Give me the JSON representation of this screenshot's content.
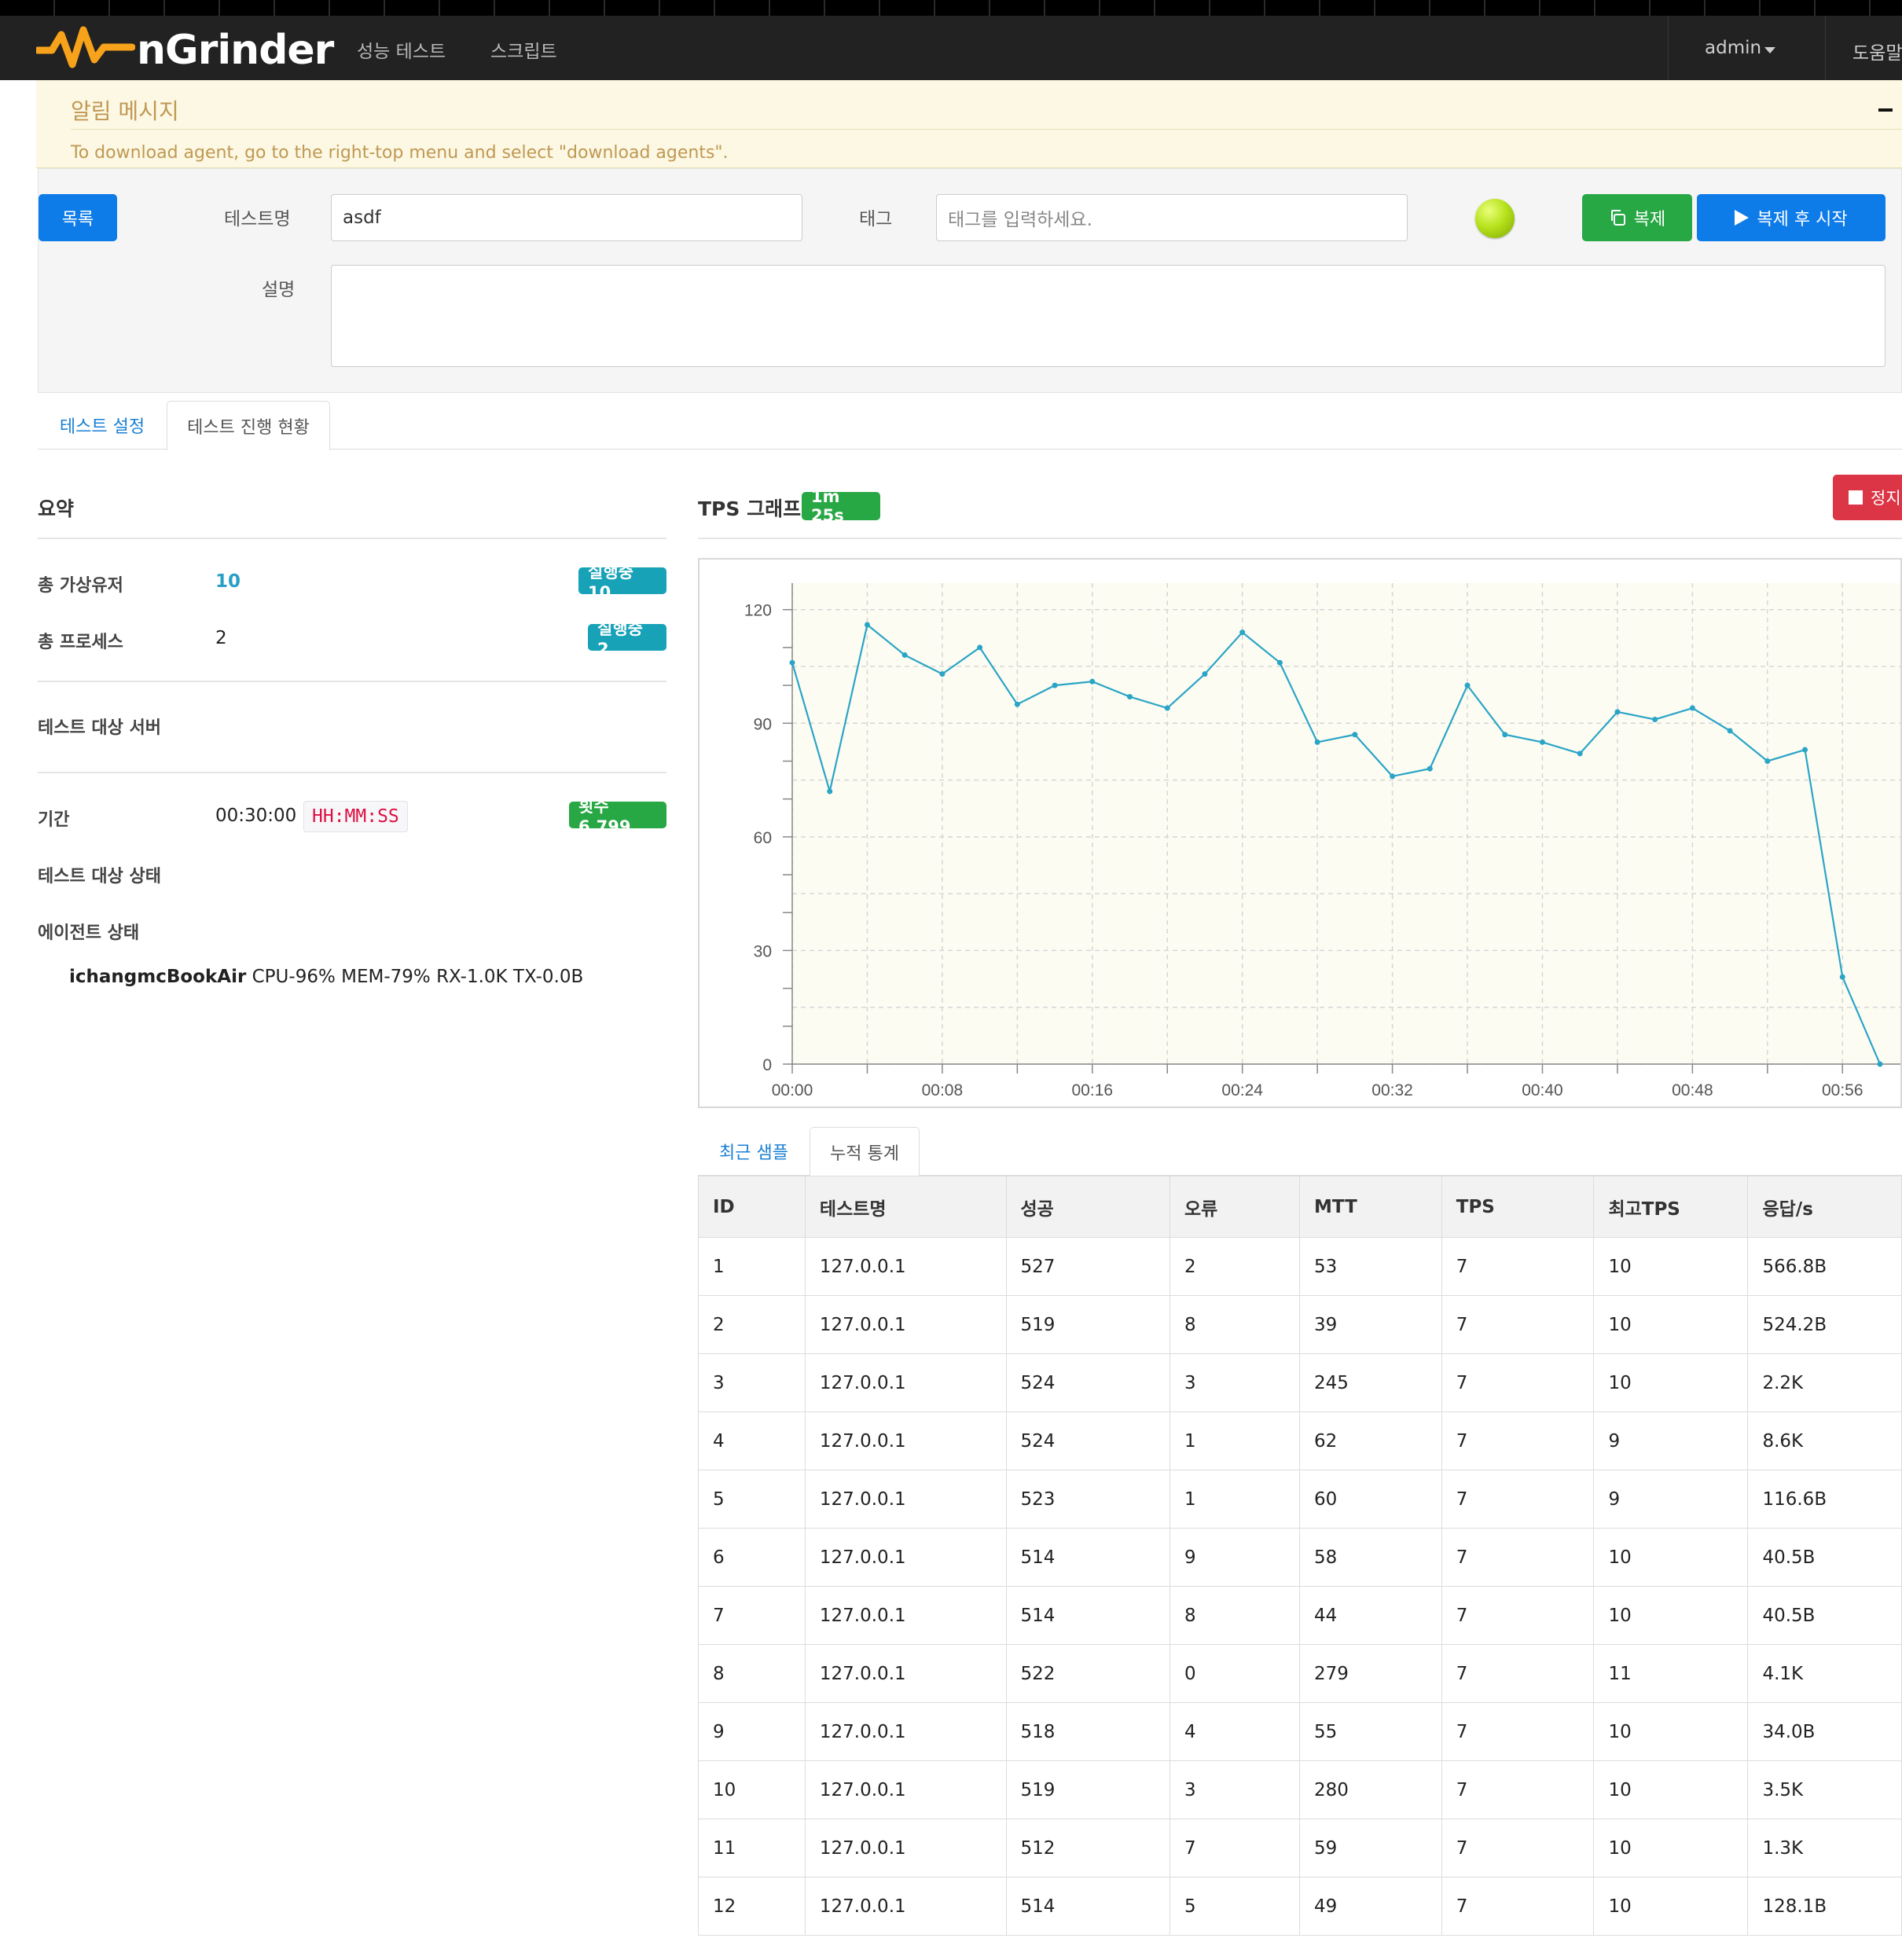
{
  "navbar": {
    "brand": "nGrinder",
    "links": [
      "성능 테스트",
      "스크립트"
    ],
    "user": "admin",
    "help": "도움말"
  },
  "alert": {
    "title": "알림 메시지",
    "body": "To download agent, go to the right-top menu and select \"download agents\"."
  },
  "form": {
    "list_button": "목록",
    "test_name_label": "테스트명",
    "test_name_value": "asdf",
    "tag_label": "태그",
    "tag_placeholder": "태그를 입력하세요.",
    "description_label": "설명",
    "copy_button": "복제",
    "copy_start_button": "복제 후 시작"
  },
  "tabs": [
    "테스트 설정",
    "테스트 진행 현황"
  ],
  "summary": {
    "title": "요약",
    "total_vusers_label": "총 가상유저",
    "total_vusers_value": "10",
    "total_vusers_badge": "실행중 10",
    "total_process_label": "총 프로세스",
    "total_process_value": "2",
    "total_process_badge": "실행중 2",
    "target_server_label": "테스트 대상 서버",
    "duration_label": "기간",
    "duration_value": "00:30:00",
    "duration_format": "HH:MM:SS",
    "runs_badge": "횟수 6,799",
    "target_status_label": "테스트 대상 상태",
    "agent_status_label": "에이전트 상태",
    "agent_name": "ichangmcBookAir",
    "agent_stats": "CPU-96% MEM-79% RX-1.0K TX-0.0B"
  },
  "tps": {
    "title": "TPS 그래프",
    "elapsed_badge": "1m 25s",
    "stop_button": "정지"
  },
  "chart_data": {
    "type": "line",
    "title": "",
    "xlabel": "",
    "ylabel": "",
    "x_ticks": [
      "00:00",
      "00:08",
      "00:16",
      "00:24",
      "00:32",
      "00:40",
      "00:48",
      "00:56"
    ],
    "y_ticks": [
      0,
      30,
      60,
      90,
      120
    ],
    "ylim": [
      0,
      127
    ],
    "xlim_seconds": [
      0,
      58
    ],
    "grid": true,
    "series": [
      {
        "color": "#2aa5c6",
        "x_seconds": [
          0,
          2,
          4,
          6,
          8,
          10,
          12,
          14,
          16,
          18,
          20,
          22,
          24,
          26,
          28,
          30,
          32,
          34,
          36,
          38,
          40,
          42,
          44,
          46,
          48,
          50,
          52,
          54,
          56,
          58
        ],
        "values": [
          106,
          72,
          116,
          108,
          103,
          110,
          95,
          100,
          101,
          97,
          94,
          103,
          114,
          106,
          85,
          87,
          76,
          78,
          100,
          87,
          85,
          82,
          93,
          91,
          94,
          88,
          80,
          83,
          23,
          0
        ]
      }
    ]
  },
  "stats_tabs": [
    "최근 샘플",
    "누적 통계"
  ],
  "stats_table": {
    "headers": [
      "ID",
      "테스트명",
      "성공",
      "오류",
      "MTT",
      "TPS",
      "최고TPS",
      "응답/s"
    ],
    "rows": [
      [
        "1",
        "127.0.0.1",
        "527",
        "2",
        "53",
        "7",
        "10",
        "566.8B"
      ],
      [
        "2",
        "127.0.0.1",
        "519",
        "8",
        "39",
        "7",
        "10",
        "524.2B"
      ],
      [
        "3",
        "127.0.0.1",
        "524",
        "3",
        "245",
        "7",
        "10",
        "2.2K"
      ],
      [
        "4",
        "127.0.0.1",
        "524",
        "1",
        "62",
        "7",
        "9",
        "8.6K"
      ],
      [
        "5",
        "127.0.0.1",
        "523",
        "1",
        "60",
        "7",
        "9",
        "116.6B"
      ],
      [
        "6",
        "127.0.0.1",
        "514",
        "9",
        "58",
        "7",
        "10",
        "40.5B"
      ],
      [
        "7",
        "127.0.0.1",
        "514",
        "8",
        "44",
        "7",
        "10",
        "40.5B"
      ],
      [
        "8",
        "127.0.0.1",
        "522",
        "0",
        "279",
        "7",
        "11",
        "4.1K"
      ],
      [
        "9",
        "127.0.0.1",
        "518",
        "4",
        "55",
        "7",
        "10",
        "34.0B"
      ],
      [
        "10",
        "127.0.0.1",
        "519",
        "3",
        "280",
        "7",
        "10",
        "3.5K"
      ],
      [
        "11",
        "127.0.0.1",
        "512",
        "7",
        "59",
        "7",
        "10",
        "1.3K"
      ],
      [
        "12",
        "127.0.0.1",
        "514",
        "5",
        "49",
        "7",
        "10",
        "128.1B"
      ]
    ]
  },
  "colors": {
    "navbar": "#222222",
    "alert_bg": "#fcf8e3",
    "alert_text": "#c09853",
    "primary": "#0d7be8",
    "success": "#28a745",
    "info": "#17a2b8",
    "danger": "#dc3545",
    "chart_line": "#2aa5c6",
    "chart_bg": "#fdfcf3"
  }
}
